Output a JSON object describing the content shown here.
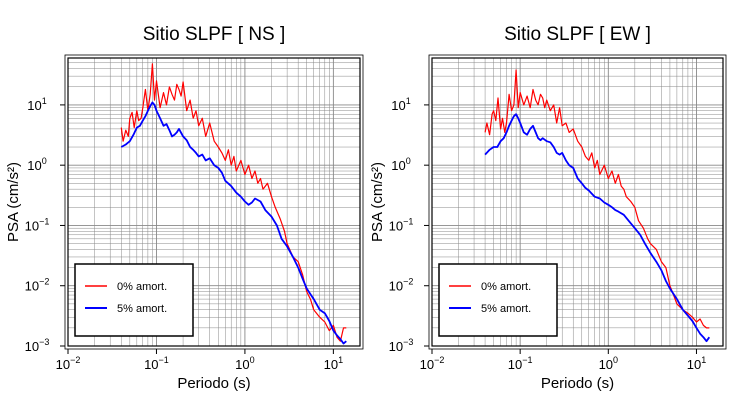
{
  "chart_data": [
    {
      "type": "line",
      "title": "Sitio SLPF [ NS ]",
      "xlabel": "Periodo (s)",
      "ylabel": "PSA (cm/s²)",
      "xscale": "log",
      "yscale": "log",
      "xlim": [
        0.01,
        20
      ],
      "ylim": [
        0.001,
        60
      ],
      "xticks": [
        {
          "value": 0.01,
          "base": "10",
          "exp": "−2"
        },
        {
          "value": 0.1,
          "base": "10",
          "exp": "−1"
        },
        {
          "value": 1,
          "base": "10",
          "exp": "0"
        },
        {
          "value": 10,
          "base": "10",
          "exp": "1"
        }
      ],
      "yticks": [
        {
          "value": 0.001,
          "base": "10",
          "exp": "−3"
        },
        {
          "value": 0.01,
          "base": "10",
          "exp": "−2"
        },
        {
          "value": 0.1,
          "base": "10",
          "exp": "−1"
        },
        {
          "value": 1,
          "base": "10",
          "exp": "0"
        },
        {
          "value": 10,
          "base": "10",
          "exp": "1"
        }
      ],
      "grid": true,
      "legend_position": "bottom-left",
      "series": [
        {
          "name": "0% amort.",
          "color": "#ff0000",
          "x": [
            0.04,
            0.042,
            0.045,
            0.048,
            0.05,
            0.053,
            0.056,
            0.06,
            0.063,
            0.067,
            0.07,
            0.075,
            0.08,
            0.085,
            0.09,
            0.095,
            0.1,
            0.11,
            0.12,
            0.13,
            0.14,
            0.15,
            0.16,
            0.17,
            0.18,
            0.19,
            0.2,
            0.22,
            0.24,
            0.26,
            0.28,
            0.3,
            0.33,
            0.36,
            0.4,
            0.45,
            0.5,
            0.55,
            0.6,
            0.65,
            0.7,
            0.75,
            0.8,
            0.9,
            1.0,
            1.1,
            1.2,
            1.3,
            1.4,
            1.5,
            1.6,
            1.8,
            2.0,
            2.2,
            2.5,
            2.8,
            3.0,
            3.5,
            4.0,
            4.5,
            5.0,
            5.5,
            6.0,
            7.0,
            8.0,
            9.0,
            10.0,
            11.0,
            12.0,
            13.0,
            14.0
          ],
          "y": [
            4.2,
            2.5,
            3.8,
            3.0,
            6.0,
            7.5,
            4.2,
            8.0,
            5.5,
            6.0,
            9.0,
            18.0,
            8.0,
            15.0,
            48.0,
            12.0,
            25.0,
            9.0,
            16.0,
            10.0,
            20.0,
            15.0,
            12.0,
            22.0,
            18.0,
            14.0,
            24.0,
            8.0,
            12.0,
            6.0,
            8.0,
            4.5,
            6.0,
            3.0,
            5.0,
            2.5,
            2.0,
            1.6,
            1.2,
            1.8,
            1.0,
            1.4,
            0.8,
            1.2,
            0.7,
            1.0,
            0.6,
            0.8,
            0.5,
            0.6,
            0.4,
            0.5,
            0.3,
            0.2,
            0.13,
            0.08,
            0.05,
            0.03,
            0.025,
            0.015,
            0.008,
            0.006,
            0.004,
            0.003,
            0.0025,
            0.0018,
            0.0022,
            0.0014,
            0.0012,
            0.002,
            0.002
          ]
        },
        {
          "name": "5% amort.",
          "color": "#0000ff",
          "x": [
            0.04,
            0.045,
            0.05,
            0.055,
            0.06,
            0.065,
            0.07,
            0.075,
            0.08,
            0.085,
            0.09,
            0.095,
            0.1,
            0.11,
            0.12,
            0.13,
            0.14,
            0.15,
            0.16,
            0.17,
            0.18,
            0.2,
            0.22,
            0.24,
            0.26,
            0.28,
            0.3,
            0.33,
            0.36,
            0.4,
            0.45,
            0.5,
            0.55,
            0.6,
            0.7,
            0.8,
            0.9,
            1.0,
            1.1,
            1.2,
            1.3,
            1.5,
            1.7,
            2.0,
            2.3,
            2.6,
            3.0,
            3.5,
            4.0,
            4.5,
            5.0,
            6.0,
            7.0,
            8.0,
            9.0,
            10.0,
            11.0,
            12.0,
            13.0,
            14.0
          ],
          "y": [
            2.0,
            2.2,
            2.5,
            3.2,
            4.2,
            4.5,
            5.5,
            6.5,
            8.0,
            9.5,
            11.0,
            10.0,
            8.0,
            6.0,
            4.5,
            4.8,
            3.8,
            3.0,
            3.2,
            3.5,
            4.0,
            3.0,
            2.6,
            2.0,
            1.8,
            1.6,
            1.4,
            1.5,
            1.2,
            1.3,
            1.0,
            0.9,
            0.75,
            0.55,
            0.45,
            0.35,
            0.3,
            0.25,
            0.22,
            0.24,
            0.28,
            0.25,
            0.18,
            0.14,
            0.1,
            0.06,
            0.045,
            0.03,
            0.02,
            0.013,
            0.009,
            0.006,
            0.004,
            0.0035,
            0.0026,
            0.0018,
            0.0015,
            0.0013,
            0.0011,
            0.0012
          ]
        }
      ]
    },
    {
      "type": "line",
      "title": "Sitio SLPF [ EW ]",
      "xlabel": "Periodo (s)",
      "ylabel": "PSA (cm/s²)",
      "xscale": "log",
      "yscale": "log",
      "xlim": [
        0.01,
        20
      ],
      "ylim": [
        0.001,
        60
      ],
      "xticks": [
        {
          "value": 0.01,
          "base": "10",
          "exp": "−2"
        },
        {
          "value": 0.1,
          "base": "10",
          "exp": "−1"
        },
        {
          "value": 1,
          "base": "10",
          "exp": "0"
        },
        {
          "value": 10,
          "base": "10",
          "exp": "1"
        }
      ],
      "yticks": [
        {
          "value": 0.001,
          "base": "10",
          "exp": "−3"
        },
        {
          "value": 0.01,
          "base": "10",
          "exp": "−2"
        },
        {
          "value": 0.1,
          "base": "10",
          "exp": "−1"
        },
        {
          "value": 1,
          "base": "10",
          "exp": "0"
        },
        {
          "value": 10,
          "base": "10",
          "exp": "1"
        }
      ],
      "grid": true,
      "legend_position": "bottom-left",
      "series": [
        {
          "name": "0% amort.",
          "color": "#ff0000",
          "x": [
            0.04,
            0.042,
            0.045,
            0.048,
            0.05,
            0.053,
            0.056,
            0.06,
            0.063,
            0.067,
            0.07,
            0.075,
            0.08,
            0.085,
            0.09,
            0.095,
            0.1,
            0.11,
            0.12,
            0.13,
            0.14,
            0.15,
            0.16,
            0.17,
            0.18,
            0.19,
            0.2,
            0.22,
            0.24,
            0.26,
            0.28,
            0.3,
            0.33,
            0.36,
            0.4,
            0.45,
            0.5,
            0.55,
            0.6,
            0.65,
            0.7,
            0.75,
            0.8,
            0.9,
            1.0,
            1.1,
            1.2,
            1.3,
            1.4,
            1.5,
            1.6,
            1.8,
            2.0,
            2.2,
            2.5,
            2.8,
            3.0,
            3.5,
            4.0,
            4.5,
            5.0,
            5.5,
            6.0,
            7.0,
            8.0,
            9.0,
            10.0,
            11.0,
            12.0,
            13.0,
            14.0
          ],
          "y": [
            3.5,
            5.0,
            3.2,
            7.0,
            8.0,
            5.5,
            13.0,
            4.0,
            6.0,
            3.5,
            5.0,
            15.0,
            8.0,
            10.0,
            38.0,
            9.0,
            16.0,
            10.0,
            14.0,
            9.0,
            18.0,
            12.0,
            10.0,
            15.0,
            13.0,
            9.0,
            12.0,
            8.0,
            10.0,
            5.0,
            9.0,
            4.5,
            5.0,
            3.5,
            4.0,
            2.5,
            2.0,
            1.4,
            1.2,
            1.6,
            0.9,
            1.2,
            0.7,
            1.0,
            0.6,
            0.8,
            0.5,
            0.7,
            0.45,
            0.4,
            0.3,
            0.25,
            0.2,
            0.12,
            0.09,
            0.06,
            0.05,
            0.04,
            0.025,
            0.02,
            0.01,
            0.007,
            0.005,
            0.004,
            0.0035,
            0.003,
            0.0025,
            0.0028,
            0.0022,
            0.002,
            0.002
          ]
        },
        {
          "name": "5% amort.",
          "color": "#0000ff",
          "x": [
            0.04,
            0.045,
            0.05,
            0.055,
            0.06,
            0.065,
            0.07,
            0.075,
            0.08,
            0.085,
            0.09,
            0.095,
            0.1,
            0.11,
            0.12,
            0.13,
            0.14,
            0.15,
            0.16,
            0.17,
            0.18,
            0.2,
            0.22,
            0.24,
            0.26,
            0.28,
            0.3,
            0.33,
            0.36,
            0.4,
            0.45,
            0.5,
            0.55,
            0.6,
            0.7,
            0.8,
            0.9,
            1.0,
            1.1,
            1.2,
            1.3,
            1.5,
            1.7,
            2.0,
            2.3,
            2.6,
            3.0,
            3.5,
            4.0,
            4.5,
            5.0,
            6.0,
            7.0,
            8.0,
            9.0,
            10.0,
            11.0,
            12.0,
            13.0,
            14.0
          ],
          "y": [
            1.5,
            1.8,
            2.0,
            2.0,
            2.5,
            2.8,
            3.5,
            4.5,
            5.5,
            6.5,
            7.0,
            6.0,
            5.0,
            3.5,
            3.2,
            4.0,
            4.5,
            3.5,
            2.8,
            2.6,
            2.8,
            2.5,
            2.4,
            2.0,
            1.6,
            1.5,
            1.6,
            1.2,
            1.0,
            0.9,
            0.6,
            0.5,
            0.42,
            0.38,
            0.3,
            0.28,
            0.24,
            0.22,
            0.2,
            0.18,
            0.17,
            0.15,
            0.12,
            0.09,
            0.07,
            0.05,
            0.035,
            0.025,
            0.018,
            0.012,
            0.009,
            0.006,
            0.004,
            0.0032,
            0.0026,
            0.002,
            0.0016,
            0.0014,
            0.0012,
            0.0014
          ]
        }
      ]
    }
  ]
}
